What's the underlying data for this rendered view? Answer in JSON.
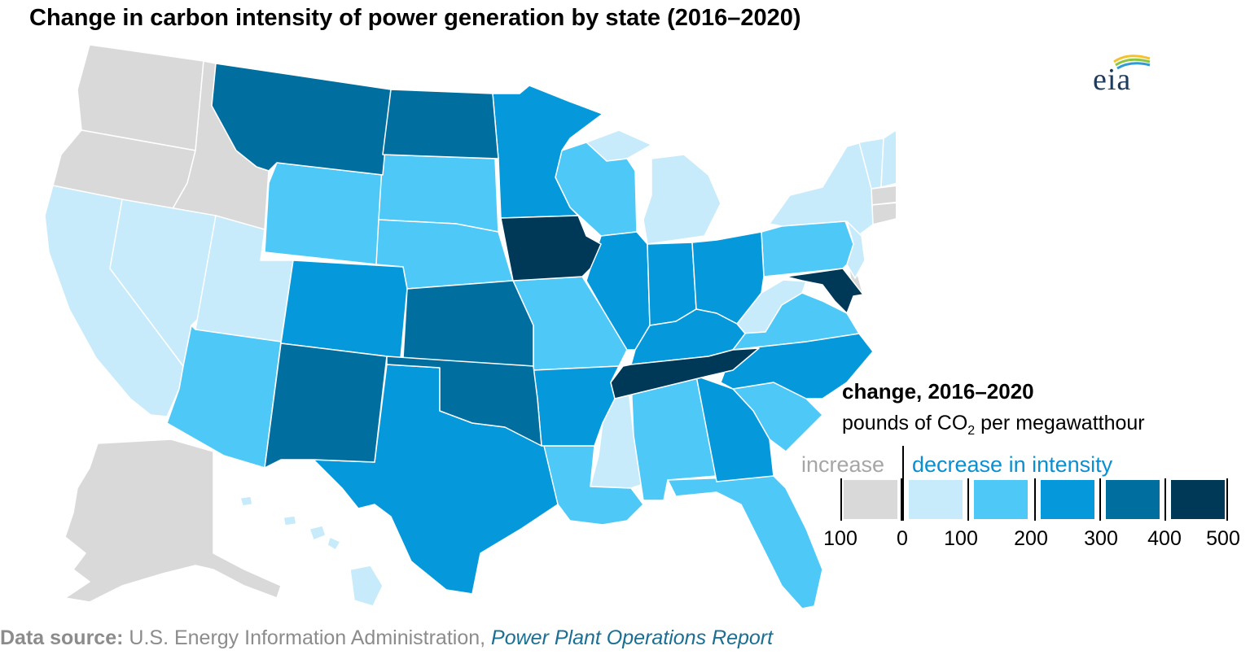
{
  "title": "Change in carbon intensity of power generation by state (2016–2020)",
  "logo_text": "eia",
  "colors": {
    "increase": "#d9d9d9",
    "dec_0_100": "#c7ebfb",
    "dec_100_200": "#4ec8f7",
    "dec_200_300": "#0599db",
    "dec_300_400": "#006f9f",
    "dec_400_500": "#003858"
  },
  "legend": {
    "title": "change, 2016–2020",
    "unit_prefix": "pounds of CO",
    "unit_sub": "2",
    "unit_suffix": " per megawatthour",
    "increase_label": "increase",
    "decrease_label": "decrease in intensity",
    "bins": [
      {
        "range": "increase 0–100",
        "color": "#d9d9d9"
      },
      {
        "range": "decrease 0–100",
        "color": "#c7ebfb"
      },
      {
        "range": "decrease 100–200",
        "color": "#4ec8f7"
      },
      {
        "range": "decrease 200–300",
        "color": "#0599db"
      },
      {
        "range": "decrease 300–400",
        "color": "#006f9f"
      },
      {
        "range": "decrease 400–500",
        "color": "#003858"
      }
    ],
    "ticks": [
      "100",
      "0",
      "100",
      "200",
      "300",
      "400",
      "500"
    ]
  },
  "states": [
    {
      "abbr": "WA",
      "bin": "increase"
    },
    {
      "abbr": "OR",
      "bin": "increase"
    },
    {
      "abbr": "ID",
      "bin": "increase"
    },
    {
      "abbr": "AK",
      "bin": "increase"
    },
    {
      "abbr": "CT",
      "bin": "increase"
    },
    {
      "abbr": "RI",
      "bin": "increase"
    },
    {
      "abbr": "MA",
      "bin": "increase"
    },
    {
      "abbr": "DE",
      "bin": "increase"
    },
    {
      "abbr": "CA",
      "bin": "0-100"
    },
    {
      "abbr": "NV",
      "bin": "0-100"
    },
    {
      "abbr": "UT",
      "bin": "0-100"
    },
    {
      "abbr": "MI",
      "bin": "0-100"
    },
    {
      "abbr": "MS",
      "bin": "0-100"
    },
    {
      "abbr": "WV",
      "bin": "0-100"
    },
    {
      "abbr": "NY",
      "bin": "0-100"
    },
    {
      "abbr": "VT",
      "bin": "0-100"
    },
    {
      "abbr": "NH",
      "bin": "0-100"
    },
    {
      "abbr": "ME",
      "bin": "0-100"
    },
    {
      "abbr": "NJ",
      "bin": "0-100"
    },
    {
      "abbr": "HI",
      "bin": "0-100"
    },
    {
      "abbr": "WY",
      "bin": "100-200"
    },
    {
      "abbr": "SD",
      "bin": "100-200"
    },
    {
      "abbr": "NE",
      "bin": "100-200"
    },
    {
      "abbr": "WI",
      "bin": "100-200"
    },
    {
      "abbr": "MO",
      "bin": "100-200"
    },
    {
      "abbr": "AZ",
      "bin": "100-200"
    },
    {
      "abbr": "LA",
      "bin": "100-200"
    },
    {
      "abbr": "AL",
      "bin": "100-200"
    },
    {
      "abbr": "FL",
      "bin": "100-200"
    },
    {
      "abbr": "SC",
      "bin": "100-200"
    },
    {
      "abbr": "VA",
      "bin": "100-200"
    },
    {
      "abbr": "PA",
      "bin": "100-200"
    },
    {
      "abbr": "MN",
      "bin": "200-300"
    },
    {
      "abbr": "CO",
      "bin": "200-300"
    },
    {
      "abbr": "TX",
      "bin": "200-300"
    },
    {
      "abbr": "AR",
      "bin": "200-300"
    },
    {
      "abbr": "IL",
      "bin": "200-300"
    },
    {
      "abbr": "IN",
      "bin": "200-300"
    },
    {
      "abbr": "OH",
      "bin": "200-300"
    },
    {
      "abbr": "KY",
      "bin": "200-300"
    },
    {
      "abbr": "GA",
      "bin": "200-300"
    },
    {
      "abbr": "NC",
      "bin": "200-300"
    },
    {
      "abbr": "MT",
      "bin": "300-400"
    },
    {
      "abbr": "ND",
      "bin": "300-400"
    },
    {
      "abbr": "KS",
      "bin": "300-400"
    },
    {
      "abbr": "OK",
      "bin": "300-400"
    },
    {
      "abbr": "NM",
      "bin": "300-400"
    },
    {
      "abbr": "IA",
      "bin": "400-500"
    },
    {
      "abbr": "TN",
      "bin": "400-500"
    },
    {
      "abbr": "MD",
      "bin": "400-500"
    }
  ],
  "source": {
    "label": "Data source:",
    "text": " U.S. Energy Information Administration, ",
    "report": "Power Plant Operations Report"
  }
}
